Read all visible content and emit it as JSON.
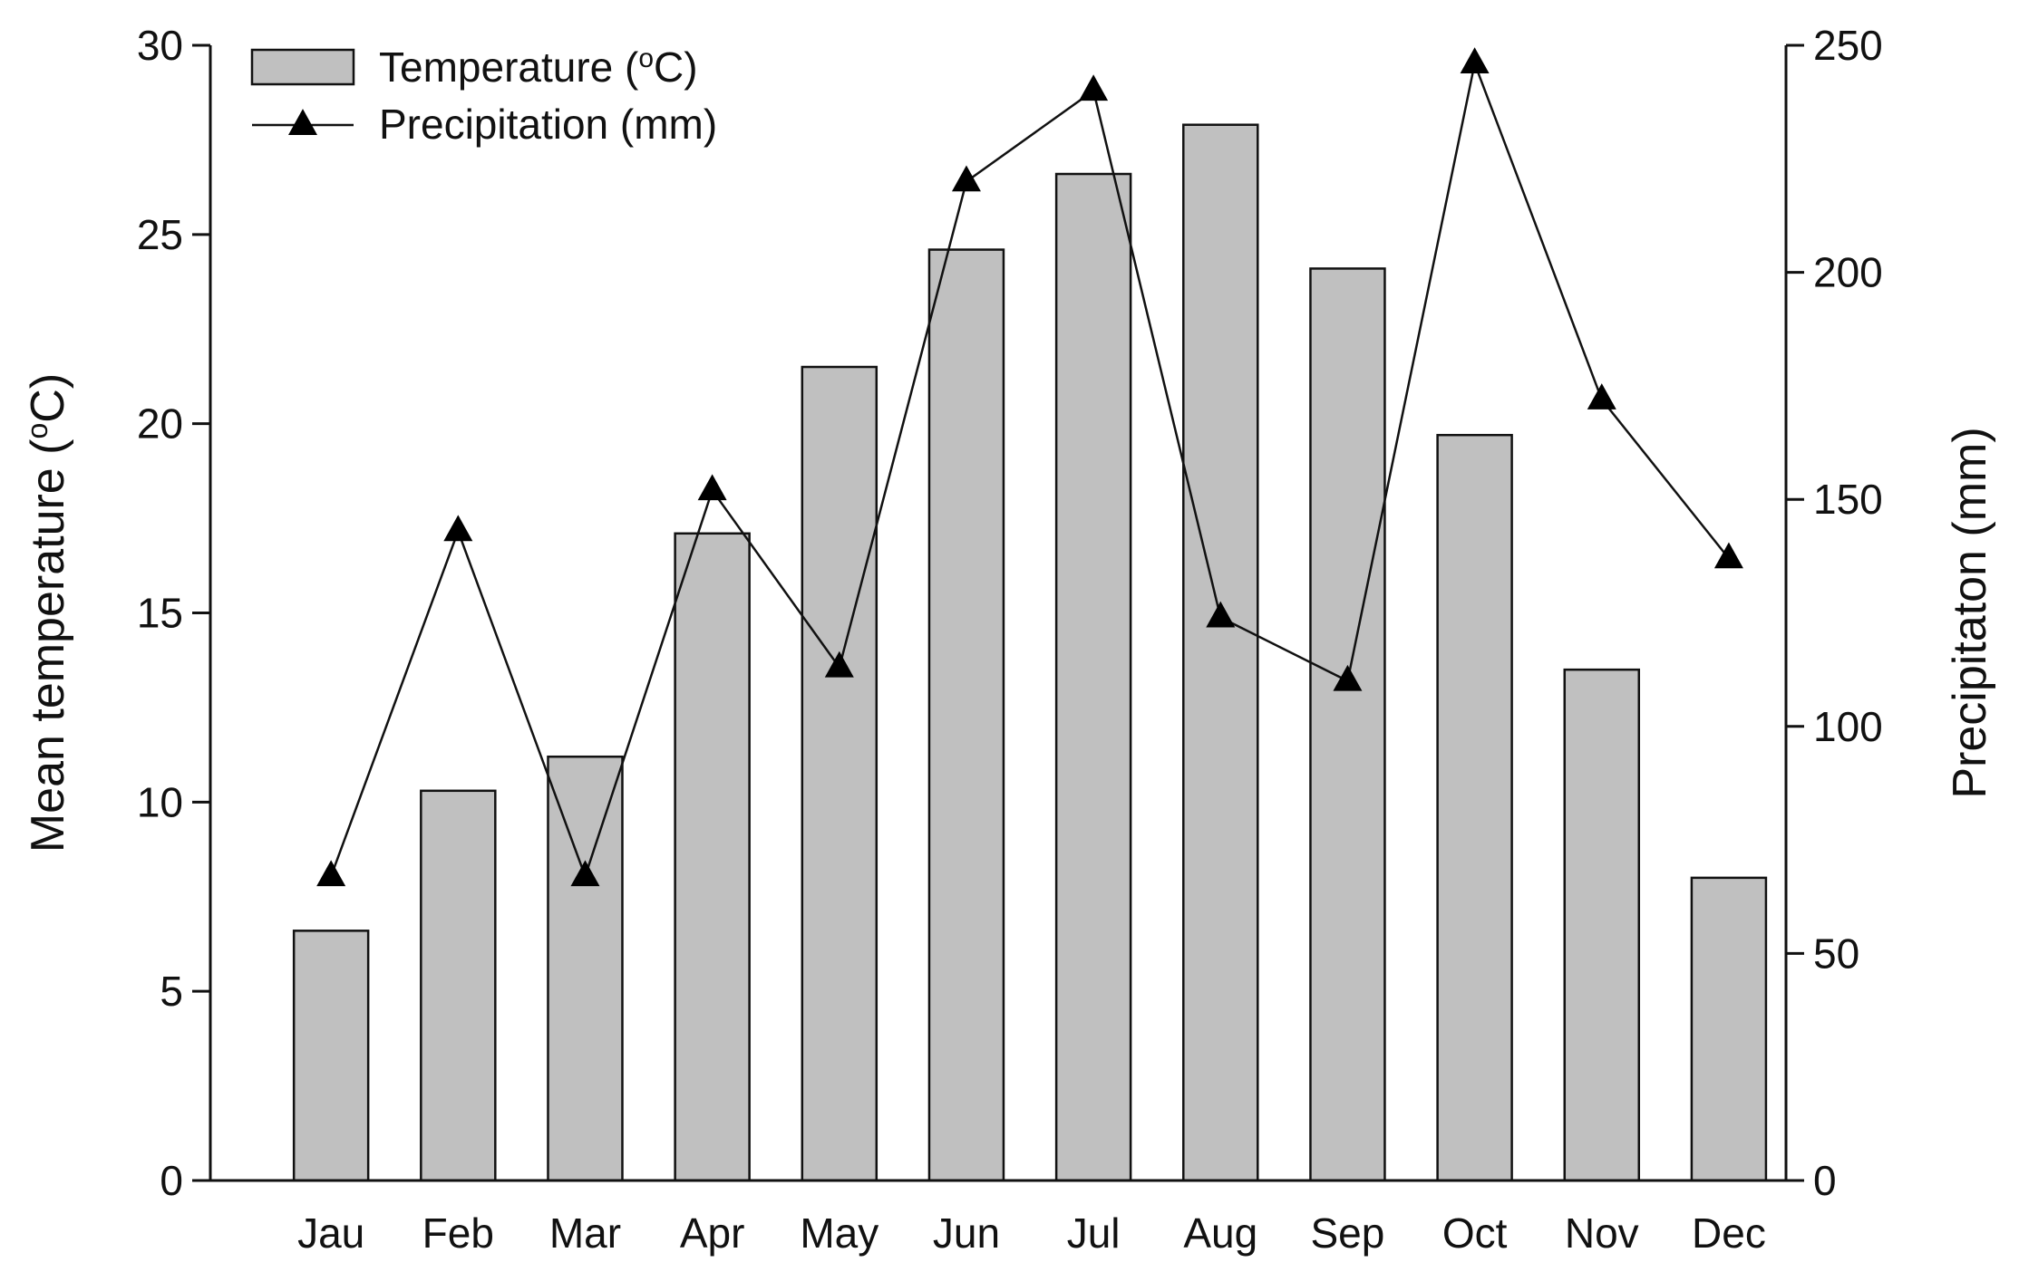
{
  "chart_data": {
    "type": "bar+line",
    "categories": [
      "Jau",
      "Feb",
      "Mar",
      "Apr",
      "May",
      "Jun",
      "Jul",
      "Aug",
      "Sep",
      "Oct",
      "Nov",
      "Dec"
    ],
    "series": [
      {
        "name": "Temperature (°C)",
        "legend_main": "Temperature (",
        "legend_sup": "o",
        "legend_tail": "C)",
        "type": "bar",
        "axis": "left",
        "values": [
          6.6,
          10.3,
          11.2,
          17.1,
          21.5,
          24.6,
          26.6,
          27.9,
          24.1,
          19.7,
          13.5,
          8.0
        ]
      },
      {
        "name": "Precipitation (mm)",
        "type": "line",
        "marker": "triangle",
        "axis": "right",
        "values": [
          67,
          143,
          67,
          152,
          113,
          220,
          240,
          124,
          110,
          246,
          172,
          137
        ]
      }
    ],
    "y_left": {
      "label_main": "Mean temperature (",
      "label_sup": "o",
      "label_tail": "C)",
      "ylim": [
        0,
        30
      ],
      "ticks": [
        0,
        5,
        10,
        15,
        20,
        25,
        30
      ]
    },
    "y_right": {
      "label": "Precipitaton (mm)",
      "ylim": [
        0,
        250
      ],
      "ticks": [
        0,
        50,
        100,
        150,
        200,
        250
      ]
    },
    "legend_position": "top-left",
    "grid": false,
    "colors": {
      "bar_fill": "#c0c0c0",
      "bar_stroke": "#111111",
      "line": "#111111"
    }
  }
}
